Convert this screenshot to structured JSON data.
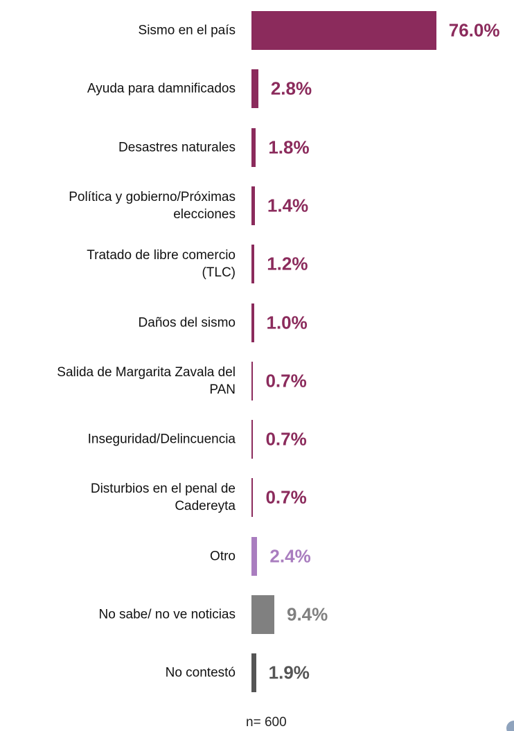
{
  "chart_data": {
    "type": "hbar",
    "categories": [
      "Sismo en el país",
      "Ayuda para damnificados",
      "Desastres naturales",
      "Política y gobierno/Próximas\nelecciones",
      "Tratado de libre comercio\n(TLC)",
      "Daños del sismo",
      "Salida de Margarita Zavala del\nPAN",
      "Inseguridad/Delincuencia",
      "Disturbios en el penal de\nCadereyta",
      "Otro",
      "No sabe/ no ve noticias",
      "No contestó"
    ],
    "values": [
      76.0,
      2.8,
      1.8,
      1.4,
      1.2,
      1.0,
      0.7,
      0.7,
      0.7,
      2.4,
      9.4,
      1.9
    ],
    "value_labels": [
      "76.0%",
      "2.8%",
      "1.8%",
      "1.4%",
      "1.2%",
      "1.0%",
      "0.7%",
      "0.7%",
      "0.7%",
      "2.4%",
      "9.4%",
      "1.9%"
    ],
    "colors": [
      "#8b2b5c",
      "#8b2b5c",
      "#8b2b5c",
      "#8b2b5c",
      "#8b2b5c",
      "#8b2b5c",
      "#8b2b5c",
      "#8b2b5c",
      "#8b2b5c",
      "#a97dbf",
      "#808080",
      "#555555"
    ],
    "note": "n= 600"
  }
}
